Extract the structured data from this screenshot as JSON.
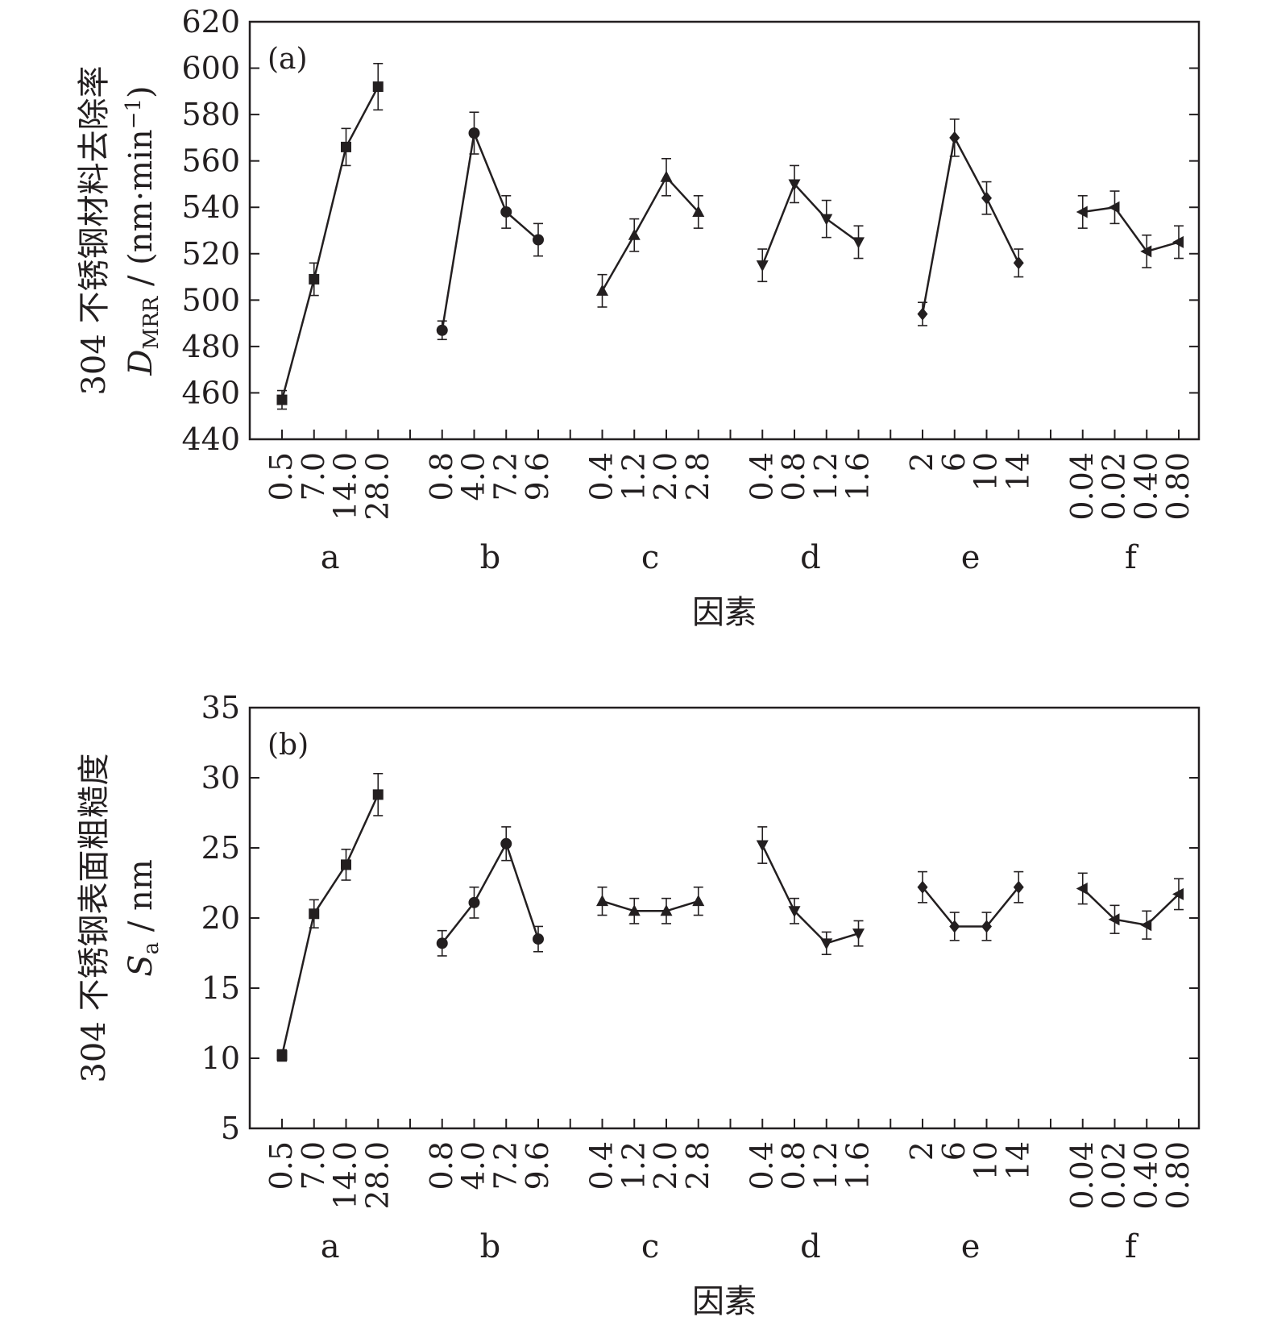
{
  "chart_data": [
    {
      "type": "line",
      "panel_label": "(a)",
      "ylabel_prefix": "304 不锈钢材料去除率",
      "ylabel_symbol": "D",
      "ylabel_subscript": "MRR",
      "ylabel_unit_pre": " / (nm·min",
      "ylabel_unit_sup": "−1",
      "ylabel_unit_post": ")",
      "xlabel": "因素",
      "ylim": [
        440,
        620
      ],
      "yticks": [
        "440",
        "460",
        "480",
        "500",
        "520",
        "540",
        "560",
        "580",
        "600",
        "620"
      ],
      "groups": [
        {
          "name": "a",
          "marker": "square",
          "levels": [
            "0.5",
            "7.0",
            "14.0",
            "28.0"
          ],
          "values": [
            457,
            509,
            566,
            592
          ],
          "errors": [
            4,
            7,
            8,
            10
          ]
        },
        {
          "name": "b",
          "marker": "circle",
          "levels": [
            "0.8",
            "4.0",
            "7.2",
            "9.6"
          ],
          "values": [
            487,
            572,
            538,
            526
          ],
          "errors": [
            4,
            9,
            7,
            7
          ]
        },
        {
          "name": "c",
          "marker": "triangle-up",
          "levels": [
            "0.4",
            "1.2",
            "2.0",
            "2.8"
          ],
          "values": [
            504,
            528,
            553,
            538
          ],
          "errors": [
            7,
            7,
            8,
            7
          ]
        },
        {
          "name": "d",
          "marker": "triangle-down",
          "levels": [
            "0.4",
            "0.8",
            "1.2",
            "1.6"
          ],
          "values": [
            515,
            550,
            535,
            525
          ],
          "errors": [
            7,
            8,
            8,
            7
          ]
        },
        {
          "name": "e",
          "marker": "diamond",
          "levels": [
            "2",
            "6",
            "10",
            "14"
          ],
          "values": [
            494,
            570,
            544,
            516
          ],
          "errors": [
            5,
            8,
            7,
            6
          ]
        },
        {
          "name": "f",
          "marker": "triangle-left",
          "levels": [
            "0.04",
            "0.02",
            "0.40",
            "0.80"
          ],
          "values": [
            538,
            540,
            521,
            525
          ],
          "errors": [
            7,
            7,
            7,
            7
          ]
        }
      ]
    },
    {
      "type": "line",
      "panel_label": "(b)",
      "ylabel_prefix": "304 不锈钢表面粗糙度",
      "ylabel_symbol": "S",
      "ylabel_subscript": "a",
      "ylabel_unit_pre": " / nm",
      "ylabel_unit_sup": "",
      "ylabel_unit_post": "",
      "xlabel": "因素",
      "ylim": [
        5,
        35
      ],
      "yticks": [
        "5",
        "10",
        "15",
        "20",
        "25",
        "30",
        "35"
      ],
      "groups": [
        {
          "name": "a",
          "marker": "square",
          "levels": [
            "0.5",
            "7.0",
            "14.0",
            "28.0"
          ],
          "values": [
            10.2,
            20.3,
            23.8,
            28.8
          ],
          "errors": [
            0.4,
            1.0,
            1.1,
            1.5
          ]
        },
        {
          "name": "b",
          "marker": "circle",
          "levels": [
            "0.8",
            "4.0",
            "7.2",
            "9.6"
          ],
          "values": [
            18.2,
            21.1,
            25.3,
            18.5
          ],
          "errors": [
            0.9,
            1.1,
            1.2,
            0.9
          ]
        },
        {
          "name": "c",
          "marker": "triangle-up",
          "levels": [
            "0.4",
            "1.2",
            "2.0",
            "2.8"
          ],
          "values": [
            21.2,
            20.5,
            20.5,
            21.2
          ],
          "errors": [
            1.0,
            0.9,
            0.9,
            1.0
          ]
        },
        {
          "name": "d",
          "marker": "triangle-down",
          "levels": [
            "0.4",
            "0.8",
            "1.2",
            "1.6"
          ],
          "values": [
            25.2,
            20.5,
            18.2,
            18.9
          ],
          "errors": [
            1.3,
            0.9,
            0.8,
            0.9
          ]
        },
        {
          "name": "e",
          "marker": "diamond",
          "levels": [
            "2",
            "6",
            "10",
            "14"
          ],
          "values": [
            22.2,
            19.4,
            19.4,
            22.2
          ],
          "errors": [
            1.1,
            1.0,
            1.0,
            1.1
          ]
        },
        {
          "name": "f",
          "marker": "triangle-left",
          "levels": [
            "0.04",
            "0.02",
            "0.40",
            "0.80"
          ],
          "values": [
            22.1,
            19.9,
            19.5,
            21.7
          ],
          "errors": [
            1.1,
            1.0,
            1.0,
            1.1
          ]
        }
      ]
    }
  ]
}
